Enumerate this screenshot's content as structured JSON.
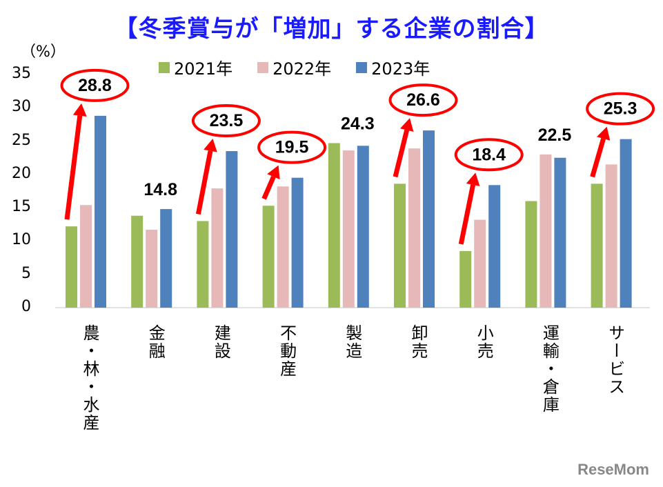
{
  "title": "【冬季賞与が「増加」する企業の割合】",
  "unit_label": "（%）",
  "watermark": "ReseMom",
  "colors": {
    "2021": "#9bbb59",
    "2022": "#e6b9b8",
    "2023": "#4f81bd",
    "highlight": "#ff0000"
  },
  "legend": [
    {
      "label": "2021年",
      "color": "#9bbb59"
    },
    {
      "label": "2022年",
      "color": "#e6b9b8"
    },
    {
      "label": "2023年",
      "color": "#4f81bd"
    }
  ],
  "chart_data": {
    "type": "bar",
    "title": "【冬季賞与が「増加」する企業の割合】",
    "xlabel": "",
    "ylabel": "（%）",
    "ylim": [
      0,
      35
    ],
    "yticks": [
      0,
      5,
      10,
      15,
      20,
      25,
      30,
      35
    ],
    "grid": false,
    "legend_position": "top",
    "categories": [
      "農・林・水産",
      "金融",
      "建設",
      "不動産",
      "製造",
      "卸売",
      "小売",
      "運輸・倉庫",
      "サービス"
    ],
    "series": [
      {
        "name": "2021年",
        "values": [
          12.2,
          13.8,
          13.0,
          15.3,
          24.7,
          18.6,
          8.5,
          16.0,
          18.6
        ]
      },
      {
        "name": "2022年",
        "values": [
          15.4,
          11.7,
          17.9,
          18.2,
          23.6,
          23.9,
          13.2,
          23.0,
          21.5
        ]
      },
      {
        "name": "2023年",
        "values": [
          28.8,
          14.8,
          23.5,
          19.5,
          24.3,
          26.6,
          18.4,
          22.5,
          25.3
        ]
      }
    ],
    "data_labels_2023": [
      "28.8",
      "14.8",
      "23.5",
      "19.5",
      "24.3",
      "26.6",
      "18.4",
      "22.5",
      "25.3"
    ],
    "annotations": {
      "circled_categories": [
        "農・林・水産",
        "建設",
        "不動産",
        "卸売",
        "小売",
        "サービス"
      ],
      "arrows": "red upward arrows from 2021 bar to 2023 label in circled categories"
    }
  }
}
